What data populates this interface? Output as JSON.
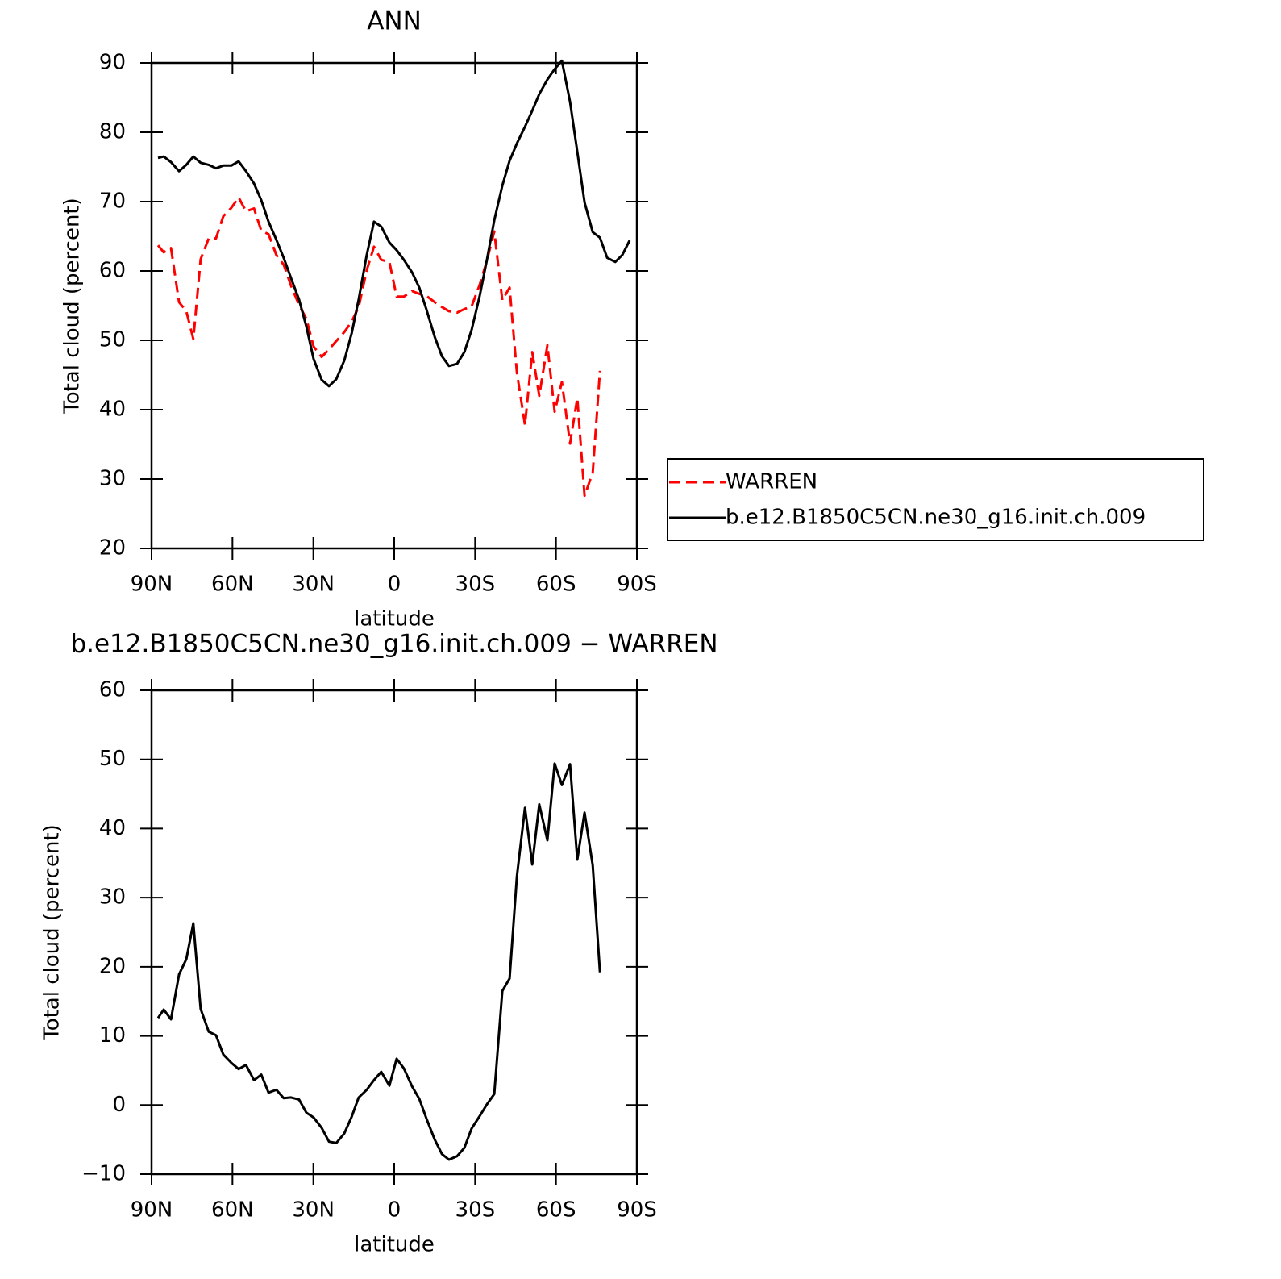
{
  "chart_data": [
    {
      "type": "line",
      "title": "ANN",
      "xlabel": "latitude",
      "ylabel": "Total cloud (percent)",
      "x": [
        87.6,
        85.5,
        82.8,
        79.8,
        77.1,
        74.5,
        71.8,
        68.8,
        66.1,
        63.4,
        60.4,
        57.7,
        55.0,
        52.0,
        49.3,
        46.6,
        43.7,
        41.0,
        38.3,
        35.3,
        32.6,
        29.9,
        26.9,
        24.2,
        21.5,
        18.5,
        15.8,
        13.2,
        10.2,
        7.5,
        4.8,
        1.8,
        -0.9,
        -3.6,
        -6.6,
        -9.3,
        -12.0,
        -15.0,
        -17.7,
        -20.3,
        -23.3,
        -26.0,
        -28.7,
        -31.7,
        -34.4,
        -37.1,
        -40.1,
        -42.8,
        -45.5,
        -48.5,
        -51.2,
        -53.8,
        -56.8,
        -59.5,
        -62.2,
        -65.2,
        -67.9,
        -70.6,
        -73.6,
        -76.3,
        -79.0,
        -82.0,
        -84.6,
        -87.3
      ],
      "series": [
        {
          "name": "WARREN",
          "color": "#ff0000",
          "style": "dashed",
          "values": [
            63.7,
            62.7,
            63.3,
            55.5,
            54.2,
            50.2,
            61.7,
            64.7,
            64.7,
            67.9,
            69.1,
            70.6,
            68.6,
            69.0,
            65.8,
            65.3,
            62.3,
            60.9,
            57.9,
            55.1,
            53.1,
            49.1,
            47.6,
            48.7,
            49.9,
            51.2,
            52.7,
            54.8,
            60.1,
            63.5,
            61.6,
            61.3,
            56.3,
            56.3,
            57.1,
            56.7,
            56.4,
            55.5,
            54.8,
            54.2,
            54.0,
            54.5,
            54.9,
            58.0,
            61.5,
            65.7,
            55.8,
            57.6,
            45.3,
            37.8,
            48.3,
            42.0,
            49.3,
            39.7,
            44.0,
            35.1,
            41.7,
            27.6,
            30.9,
            45.6,
            null,
            null,
            null,
            null
          ]
        },
        {
          "name": "b.e12.B1850C5CN.ne30_g16.init.ch.009",
          "color": "#000000",
          "style": "solid",
          "values": [
            76.3,
            76.5,
            75.7,
            74.4,
            75.3,
            76.5,
            75.6,
            75.3,
            74.8,
            75.2,
            75.2,
            75.8,
            74.4,
            72.6,
            70.2,
            67.1,
            64.5,
            61.9,
            59.0,
            55.9,
            52.0,
            47.3,
            44.3,
            43.4,
            44.4,
            47.1,
            51.0,
            55.9,
            62.3,
            67.1,
            66.4,
            64.1,
            63.0,
            61.6,
            59.8,
            57.6,
            54.4,
            50.5,
            47.7,
            46.3,
            46.6,
            48.3,
            51.5,
            56.4,
            61.6,
            67.3,
            72.3,
            75.9,
            78.4,
            80.8,
            83.1,
            85.5,
            87.6,
            89.1,
            90.3,
            84.4,
            77.2,
            69.9,
            65.6,
            64.8,
            61.9,
            61.3,
            62.3,
            64.4
          ]
        }
      ],
      "xlim": [
        90,
        -90
      ],
      "ylim": [
        20,
        90
      ],
      "xticks": [
        {
          "value": 90,
          "label": "90N"
        },
        {
          "value": 60,
          "label": "60N"
        },
        {
          "value": 30,
          "label": "30N"
        },
        0,
        {
          "value": -30,
          "label": "30S"
        },
        {
          "value": -60,
          "label": "60S"
        },
        {
          "value": -90,
          "label": "90S"
        }
      ],
      "yticks": [
        20,
        30,
        40,
        50,
        60,
        70,
        80,
        90
      ],
      "legend": "right"
    },
    {
      "type": "line",
      "title": "b.e12.B1850C5CN.ne30_g16.init.ch.009 − WARREN",
      "xlabel": "latitude",
      "ylabel": "Total cloud (percent)",
      "x": [
        87.6,
        85.5,
        82.8,
        79.8,
        77.1,
        74.5,
        71.8,
        68.8,
        66.1,
        63.4,
        60.4,
        57.7,
        55.0,
        52.0,
        49.3,
        46.6,
        43.7,
        41.0,
        38.3,
        35.3,
        32.6,
        29.9,
        26.9,
        24.2,
        21.5,
        18.5,
        15.8,
        13.2,
        10.2,
        7.5,
        4.8,
        1.8,
        -0.9,
        -3.6,
        -6.6,
        -9.3,
        -12.0,
        -15.0,
        -17.7,
        -20.3,
        -23.3,
        -26.0,
        -28.7,
        -31.7,
        -34.4,
        -37.1,
        -40.1,
        -42.8,
        -45.5,
        -48.5,
        -51.2,
        -53.8,
        -56.8,
        -59.5,
        -62.2,
        -65.2,
        -67.9,
        -70.6,
        -73.6,
        -76.3
      ],
      "series": [
        {
          "color": "#000000",
          "style": "solid",
          "values": [
            12.6,
            13.8,
            12.4,
            18.9,
            21.1,
            26.3,
            13.9,
            10.6,
            10.1,
            7.3,
            6.1,
            5.2,
            5.8,
            3.6,
            4.4,
            1.8,
            2.2,
            1.0,
            1.1,
            0.8,
            -1.1,
            -1.8,
            -3.3,
            -5.3,
            -5.5,
            -4.1,
            -1.7,
            1.1,
            2.2,
            3.6,
            4.8,
            2.8,
            6.7,
            5.3,
            2.7,
            0.9,
            -2.0,
            -5.0,
            -7.1,
            -7.9,
            -7.4,
            -6.2,
            -3.4,
            -1.6,
            0.1,
            1.6,
            16.5,
            18.3,
            33.1,
            43.0,
            34.8,
            43.5,
            38.3,
            49.4,
            46.3,
            49.3,
            35.5,
            42.3,
            34.7,
            19.2
          ]
        }
      ],
      "xlim": [
        90,
        -90
      ],
      "ylim": [
        -10,
        60
      ],
      "xticks": [
        {
          "value": 90,
          "label": "90N"
        },
        {
          "value": 60,
          "label": "60N"
        },
        {
          "value": 30,
          "label": "30N"
        },
        0,
        {
          "value": -30,
          "label": "30S"
        },
        {
          "value": -60,
          "label": "60S"
        },
        {
          "value": -90,
          "label": "90S"
        }
      ],
      "yticks": [
        {
          "value": -10,
          "label": "−10"
        },
        0,
        10,
        20,
        30,
        40,
        50,
        60
      ]
    }
  ]
}
